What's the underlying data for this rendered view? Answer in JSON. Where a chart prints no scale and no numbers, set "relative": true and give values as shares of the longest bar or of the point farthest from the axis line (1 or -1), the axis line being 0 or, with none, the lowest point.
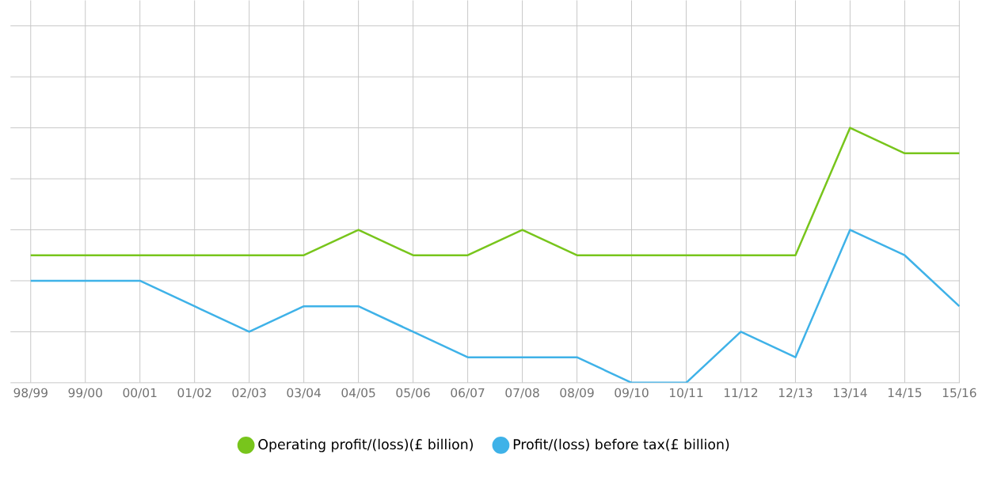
{
  "chart_data": {
    "type": "line",
    "relative": true,
    "categories": [
      "98/99",
      "99/00",
      "00/01",
      "01/02",
      "02/03",
      "03/04",
      "04/05",
      "05/06",
      "06/07",
      "07/08",
      "08/09",
      "09/10",
      "10/11",
      "11/12",
      "12/13",
      "13/14",
      "14/15",
      "15/16"
    ],
    "series": [
      {
        "name": "Operating profit/(loss)(£ billion)",
        "color": "#78c51c",
        "values": [
          0.5,
          0.5,
          0.5,
          0.5,
          0.5,
          0.5,
          0.6,
          0.5,
          0.5,
          0.6,
          0.5,
          0.5,
          0.5,
          0.5,
          0.5,
          1,
          0.9,
          0.9
        ]
      },
      {
        "name": "Profit/(loss) before tax(£ billion)",
        "color": "#3fb2e8",
        "values": [
          0.4,
          0.4,
          0.4,
          0.3,
          0.2,
          0.3,
          0.3,
          0.2,
          0.1,
          0.1,
          0.1,
          0,
          0,
          0.2,
          0.1,
          0.6,
          0.5,
          0.3
        ]
      }
    ],
    "grid": true,
    "legend": "bottom",
    "marker": "none",
    "line_style": "solid"
  }
}
